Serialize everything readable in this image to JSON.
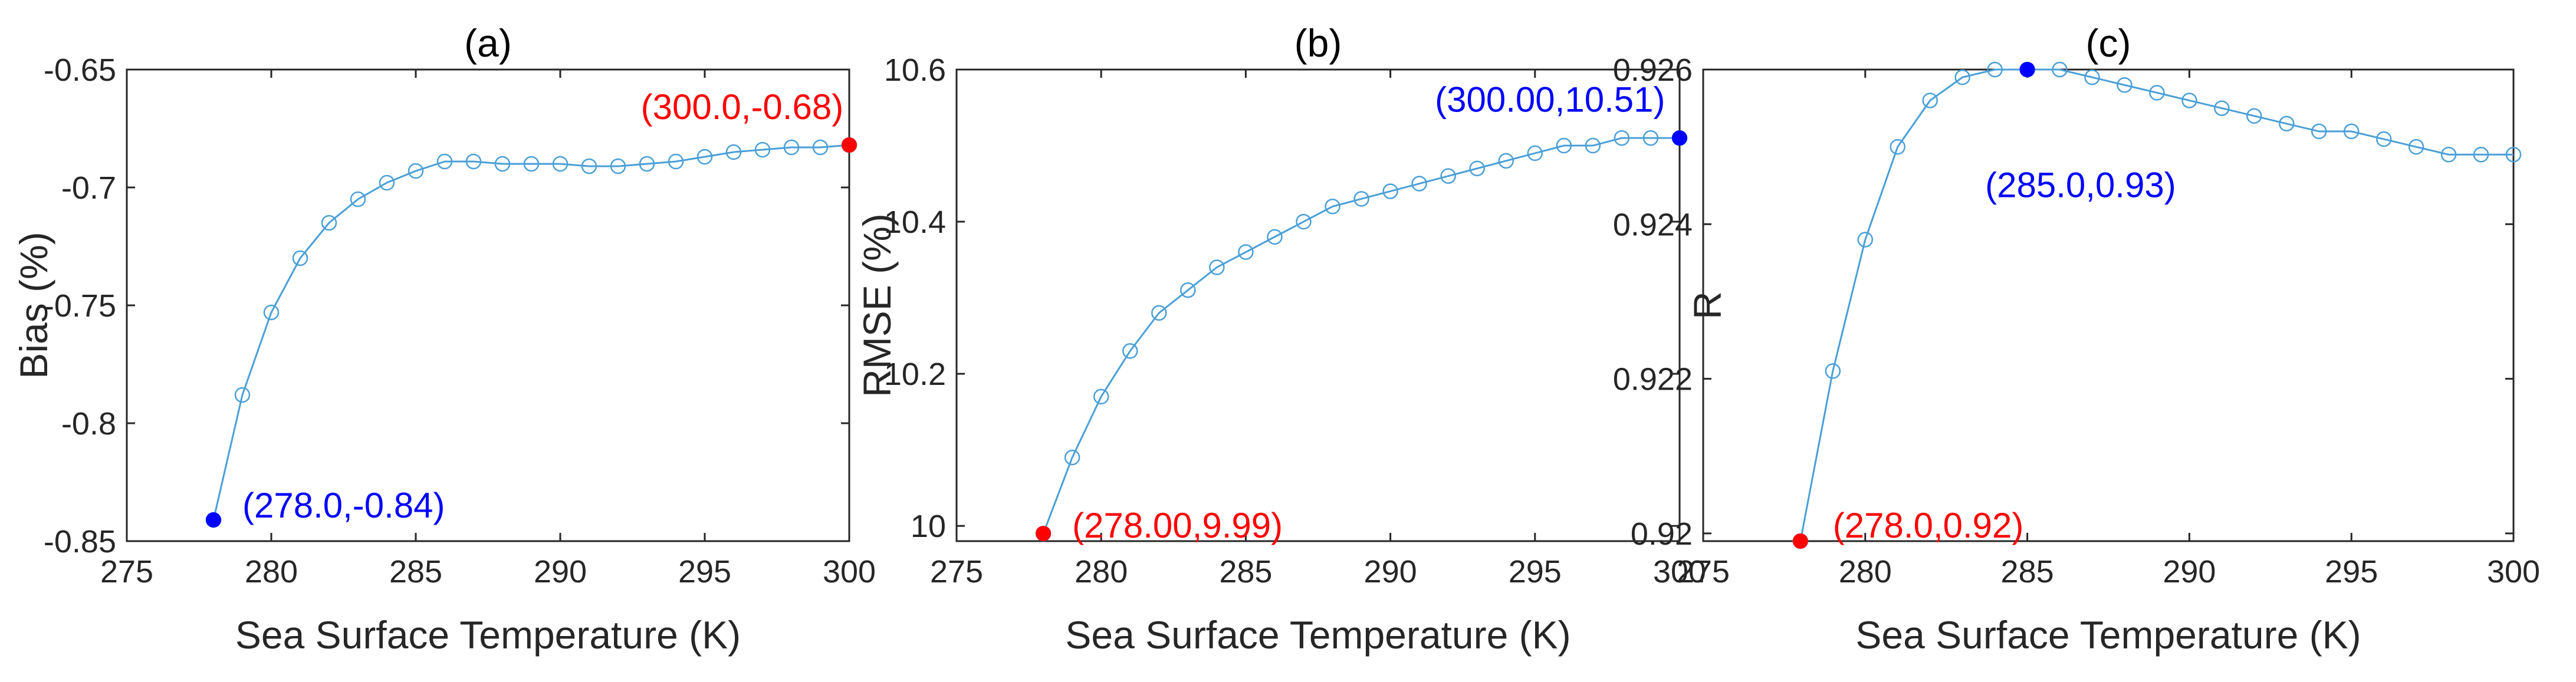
{
  "chart_data": [
    {
      "type": "line",
      "panel_title": "(a)",
      "xlabel": "Sea Surface Temperature (K)",
      "ylabel": "Bias (%)",
      "xlim": [
        275,
        300
      ],
      "ylim": [
        -0.85,
        -0.65
      ],
      "xticks": [
        275,
        280,
        285,
        290,
        295,
        300
      ],
      "yticks": [
        -0.85,
        -0.8,
        -0.75,
        -0.7,
        -0.65
      ],
      "ytick_labels": [
        "-0.85",
        "-0.8",
        "-0.75",
        "-0.7",
        "-0.65"
      ],
      "series": [
        {
          "name": "Bias",
          "color": "#4a9fd8",
          "x": [
            278,
            279,
            280,
            281,
            282,
            283,
            284,
            285,
            286,
            287,
            288,
            289,
            290,
            291,
            292,
            293,
            294,
            295,
            296,
            297,
            298,
            299,
            300
          ],
          "y": [
            -0.841,
            -0.788,
            -0.753,
            -0.73,
            -0.715,
            -0.705,
            -0.698,
            -0.693,
            -0.689,
            -0.689,
            -0.69,
            -0.69,
            -0.69,
            -0.691,
            -0.691,
            -0.69,
            -0.689,
            -0.687,
            -0.685,
            -0.684,
            -0.683,
            -0.683,
            -0.682
          ]
        }
      ],
      "highlights": [
        {
          "x": 278,
          "y": -0.841,
          "color": "#0000ff",
          "label": "(278.0,-0.84)",
          "label_x": 279.0,
          "label_y": -0.835,
          "anchor": "start"
        },
        {
          "x": 300,
          "y": -0.682,
          "color": "#ff0000",
          "label": "(300.0,-0.68)",
          "label_x": 299.8,
          "label_y": -0.666,
          "anchor": "end"
        }
      ]
    },
    {
      "type": "line",
      "panel_title": "(b)",
      "xlabel": "Sea Surface Temperature (K)",
      "ylabel": "RMSE (%)",
      "xlim": [
        275,
        300
      ],
      "ylim": [
        9.98,
        10.6
      ],
      "xticks": [
        275,
        280,
        285,
        290,
        295,
        300
      ],
      "yticks": [
        10,
        10.2,
        10.4,
        10.6
      ],
      "ytick_labels": [
        "10",
        "10.2",
        "10.4",
        "10.6"
      ],
      "series": [
        {
          "name": "RMSE",
          "color": "#4a9fd8",
          "x": [
            278,
            279,
            280,
            281,
            282,
            283,
            284,
            285,
            286,
            287,
            288,
            289,
            290,
            291,
            292,
            293,
            294,
            295,
            296,
            297,
            298,
            299,
            300
          ],
          "y": [
            9.99,
            10.09,
            10.17,
            10.23,
            10.28,
            10.31,
            10.34,
            10.36,
            10.38,
            10.4,
            10.42,
            10.43,
            10.44,
            10.45,
            10.46,
            10.47,
            10.48,
            10.49,
            10.5,
            10.5,
            10.51,
            10.51,
            10.51
          ]
        }
      ],
      "highlights": [
        {
          "x": 278,
          "y": 9.99,
          "color": "#ff0000",
          "label": "(278.00,9.99)",
          "label_x": 279.0,
          "label_y": 10.0,
          "anchor": "start"
        },
        {
          "x": 300,
          "y": 10.51,
          "color": "#0000ff",
          "label": "(300.00,10.51)",
          "label_x": 299.5,
          "label_y": 10.56,
          "anchor": "end"
        }
      ]
    },
    {
      "type": "line",
      "panel_title": "(c)",
      "xlabel": "Sea Surface Temperature (K)",
      "ylabel": "R",
      "xlim": [
        275,
        300
      ],
      "ylim": [
        0.9199,
        0.926
      ],
      "xticks": [
        275,
        280,
        285,
        290,
        295,
        300
      ],
      "yticks": [
        0.92,
        0.922,
        0.924,
        0.926
      ],
      "ytick_labels": [
        "0.92",
        "0.922",
        "0.924",
        "0.926"
      ],
      "series": [
        {
          "name": "R",
          "color": "#4a9fd8",
          "x": [
            278,
            279,
            280,
            281,
            282,
            283,
            284,
            285,
            286,
            287,
            288,
            289,
            290,
            291,
            292,
            293,
            294,
            295,
            296,
            297,
            298,
            299,
            300
          ],
          "y": [
            0.9199,
            0.9221,
            0.9238,
            0.925,
            0.9256,
            0.9259,
            0.926,
            0.926,
            0.926,
            0.9259,
            0.9258,
            0.9257,
            0.9256,
            0.9255,
            0.9254,
            0.9253,
            0.9252,
            0.9252,
            0.9251,
            0.925,
            0.9249,
            0.9249,
            0.9249
          ]
        }
      ],
      "highlights": [
        {
          "x": 278,
          "y": 0.9199,
          "color": "#ff0000",
          "label": "(278.0,0.92)",
          "label_x": 279.0,
          "label_y": 0.9201,
          "anchor": "start"
        },
        {
          "x": 285,
          "y": 0.926,
          "color": "#0000ff",
          "label": "(285.0,0.93)",
          "label_x": 283.7,
          "label_y": 0.9245,
          "anchor": "start"
        }
      ]
    }
  ]
}
